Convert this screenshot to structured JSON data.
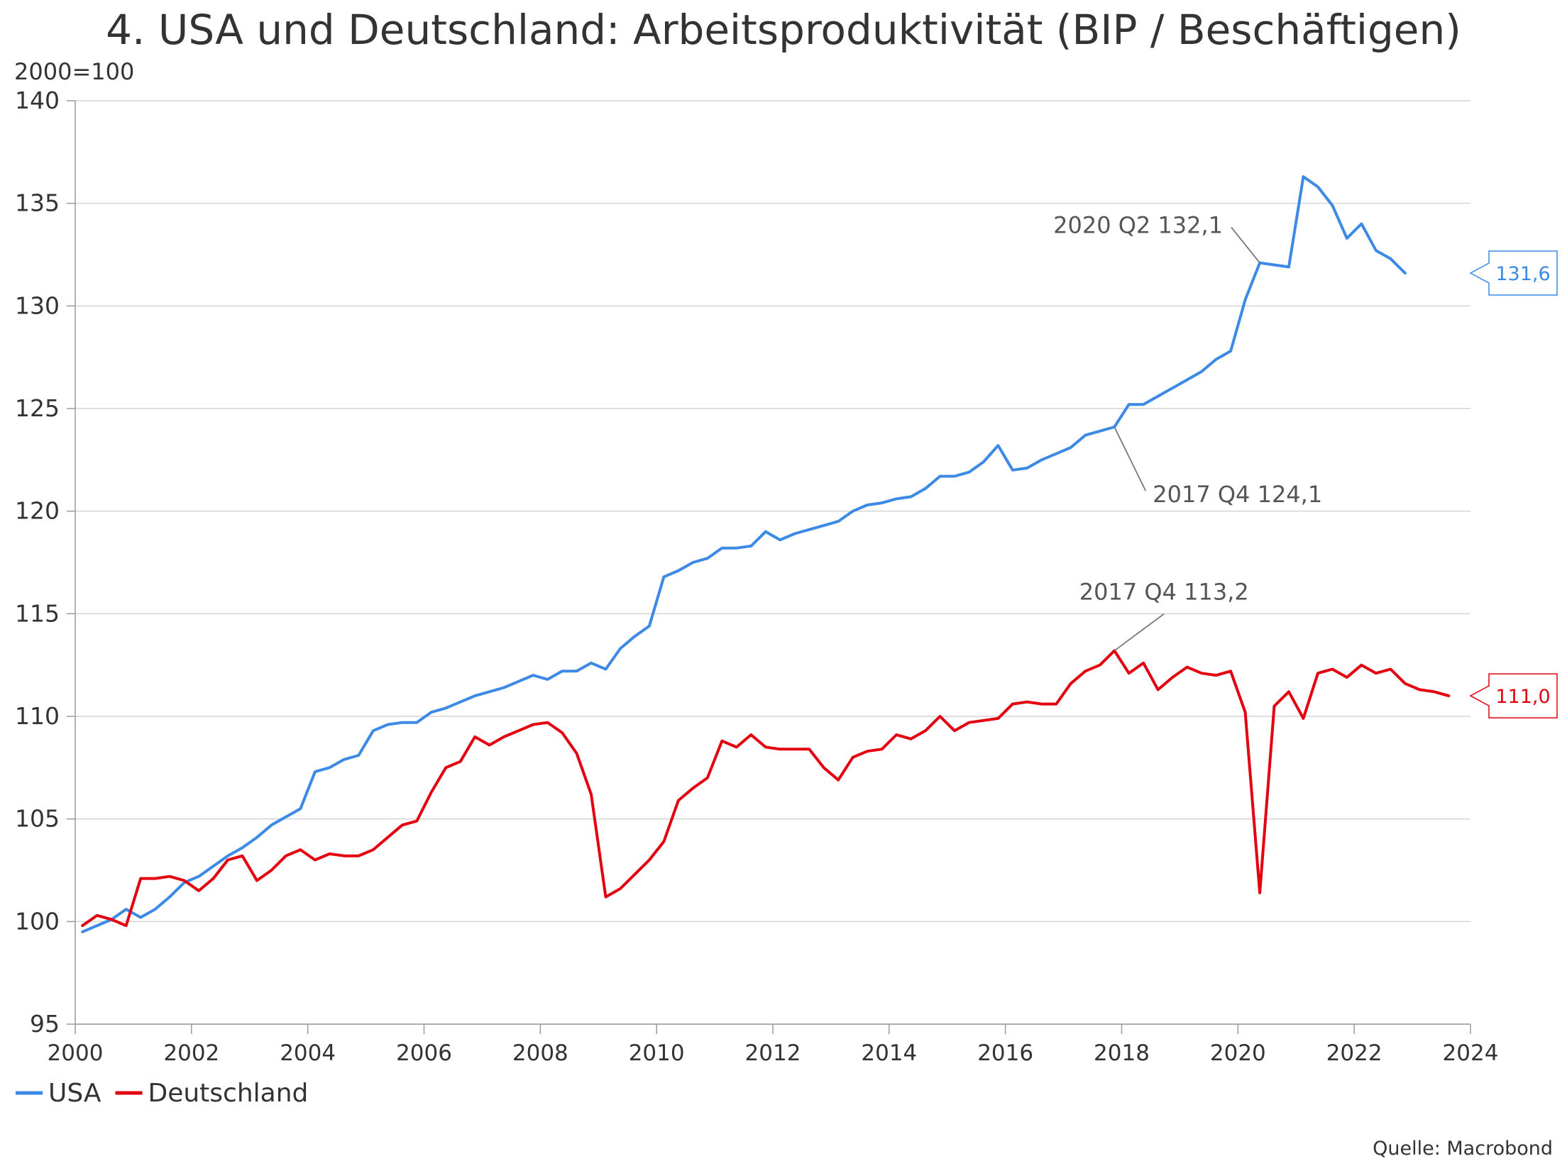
{
  "chart_data": {
    "type": "line",
    "title": "4. USA und Deutschland: Arbeitsproduktivität (BIP / Beschäftigen)",
    "unit_label": "2000=100",
    "xlim": [
      2000,
      2024
    ],
    "ylim": [
      95,
      140
    ],
    "x_ticks": [
      "2000",
      "2002",
      "2004",
      "2006",
      "2008",
      "2010",
      "2012",
      "2014",
      "2016",
      "2018",
      "2020",
      "2022",
      "2024"
    ],
    "y_ticks": [
      "95",
      "100",
      "105",
      "110",
      "115",
      "120",
      "125",
      "130",
      "135",
      "140"
    ],
    "grid": "horizontal",
    "legend_position": "bottom-left",
    "source": "Quelle: Macrobond",
    "series": [
      {
        "name": "USA",
        "color": "#3c8ae6",
        "end_label": "131,6",
        "x": [
          2000.125,
          2000.375,
          2000.625,
          2000.875,
          2001.125,
          2001.375,
          2001.625,
          2001.875,
          2002.125,
          2002.375,
          2002.625,
          2002.875,
          2003.125,
          2003.375,
          2003.625,
          2003.875,
          2004.125,
          2004.375,
          2004.625,
          2004.875,
          2005.125,
          2005.375,
          2005.625,
          2005.875,
          2006.125,
          2006.375,
          2006.625,
          2006.875,
          2007.125,
          2007.375,
          2007.625,
          2007.875,
          2008.125,
          2008.375,
          2008.625,
          2008.875,
          2009.125,
          2009.375,
          2009.625,
          2009.875,
          2010.125,
          2010.375,
          2010.625,
          2010.875,
          2011.125,
          2011.375,
          2011.625,
          2011.875,
          2012.125,
          2012.375,
          2012.625,
          2012.875,
          2013.125,
          2013.375,
          2013.625,
          2013.875,
          2014.125,
          2014.375,
          2014.625,
          2014.875,
          2015.125,
          2015.375,
          2015.625,
          2015.875,
          2016.125,
          2016.375,
          2016.625,
          2016.875,
          2017.125,
          2017.375,
          2017.625,
          2017.875,
          2018.125,
          2018.375,
          2018.625,
          2018.875,
          2019.125,
          2019.375,
          2019.625,
          2019.875,
          2020.125,
          2020.375,
          2020.625,
          2020.875,
          2021.125,
          2021.375,
          2021.625,
          2021.875,
          2022.125,
          2022.375,
          2022.625,
          2022.875
        ],
        "values": [
          99.5,
          99.8,
          100.1,
          100.6,
          100.2,
          100.6,
          101.2,
          101.9,
          102.2,
          102.7,
          103.2,
          103.6,
          104.1,
          104.7,
          105.1,
          105.5,
          107.3,
          107.5,
          107.9,
          108.1,
          109.3,
          109.6,
          109.7,
          109.7,
          110.2,
          110.4,
          110.7,
          111.0,
          111.2,
          111.4,
          111.7,
          112.0,
          111.8,
          112.2,
          112.2,
          112.6,
          112.3,
          113.3,
          113.9,
          114.4,
          116.8,
          117.1,
          117.5,
          117.7,
          118.2,
          118.2,
          118.3,
          119.0,
          118.6,
          118.9,
          119.1,
          119.3,
          119.5,
          120.0,
          120.3,
          120.4,
          120.6,
          120.7,
          121.1,
          121.7,
          121.7,
          121.9,
          122.4,
          123.2,
          122.0,
          122.1,
          122.5,
          122.8,
          123.1,
          123.7,
          123.9,
          124.1,
          125.2,
          125.2,
          125.6,
          126.0,
          126.4,
          126.8,
          127.4,
          127.8,
          130.3,
          132.1,
          132.0,
          131.9,
          136.3,
          135.8,
          134.9,
          133.3,
          134.0,
          132.7,
          132.3,
          131.6
        ]
      },
      {
        "name": "Deutschland",
        "color": "#e3000f",
        "end_label": "111,0",
        "x": [
          2000.125,
          2000.375,
          2000.625,
          2000.875,
          2001.125,
          2001.375,
          2001.625,
          2001.875,
          2002.125,
          2002.375,
          2002.625,
          2002.875,
          2003.125,
          2003.375,
          2003.625,
          2003.875,
          2004.125,
          2004.375,
          2004.625,
          2004.875,
          2005.125,
          2005.375,
          2005.625,
          2005.875,
          2006.125,
          2006.375,
          2006.625,
          2006.875,
          2007.125,
          2007.375,
          2007.625,
          2007.875,
          2008.125,
          2008.375,
          2008.625,
          2008.875,
          2009.125,
          2009.375,
          2009.625,
          2009.875,
          2010.125,
          2010.375,
          2010.625,
          2010.875,
          2011.125,
          2011.375,
          2011.625,
          2011.875,
          2012.125,
          2012.375,
          2012.625,
          2012.875,
          2013.125,
          2013.375,
          2013.625,
          2013.875,
          2014.125,
          2014.375,
          2014.625,
          2014.875,
          2015.125,
          2015.375,
          2015.625,
          2015.875,
          2016.125,
          2016.375,
          2016.625,
          2016.875,
          2017.125,
          2017.375,
          2017.625,
          2017.875,
          2018.125,
          2018.375,
          2018.625,
          2018.875,
          2019.125,
          2019.375,
          2019.625,
          2019.875,
          2020.125,
          2020.375,
          2020.625,
          2020.875,
          2021.125,
          2021.375,
          2021.625,
          2021.875,
          2022.125,
          2022.375,
          2022.625,
          2022.875,
          2023.125,
          2023.375,
          2023.625
        ],
        "values": [
          99.8,
          100.3,
          100.1,
          99.8,
          102.1,
          102.1,
          102.2,
          102.0,
          101.5,
          102.1,
          103.0,
          103.2,
          102.0,
          102.5,
          103.2,
          103.5,
          103.0,
          103.3,
          103.2,
          103.2,
          103.5,
          104.1,
          104.7,
          104.9,
          106.3,
          107.5,
          107.8,
          109.0,
          108.6,
          109.0,
          109.3,
          109.6,
          109.7,
          109.2,
          108.2,
          106.2,
          101.2,
          101.6,
          102.3,
          103.0,
          103.9,
          105.9,
          106.5,
          107.0,
          108.8,
          108.5,
          109.1,
          108.5,
          108.4,
          108.4,
          108.4,
          107.5,
          106.9,
          108.0,
          108.3,
          108.4,
          109.1,
          108.9,
          109.3,
          110.0,
          109.3,
          109.7,
          109.8,
          109.9,
          110.6,
          110.7,
          110.6,
          110.6,
          111.6,
          112.2,
          112.5,
          113.2,
          112.1,
          112.6,
          111.3,
          111.9,
          112.4,
          112.1,
          112.0,
          112.2,
          110.2,
          101.4,
          110.5,
          111.2,
          109.9,
          112.1,
          112.3,
          111.9,
          112.5,
          112.1,
          112.3,
          111.6,
          111.3,
          111.2,
          111.0
        ]
      }
    ],
    "annotations": [
      {
        "series": "USA",
        "text": "2020 Q2 132,1",
        "x": 2020.375,
        "y": 132.1
      },
      {
        "series": "USA",
        "text": "2017 Q4 124,1",
        "x": 2017.875,
        "y": 124.1
      },
      {
        "series": "Deutschland",
        "text": "2017 Q4 113,2",
        "x": 2017.875,
        "y": 113.2
      }
    ]
  }
}
